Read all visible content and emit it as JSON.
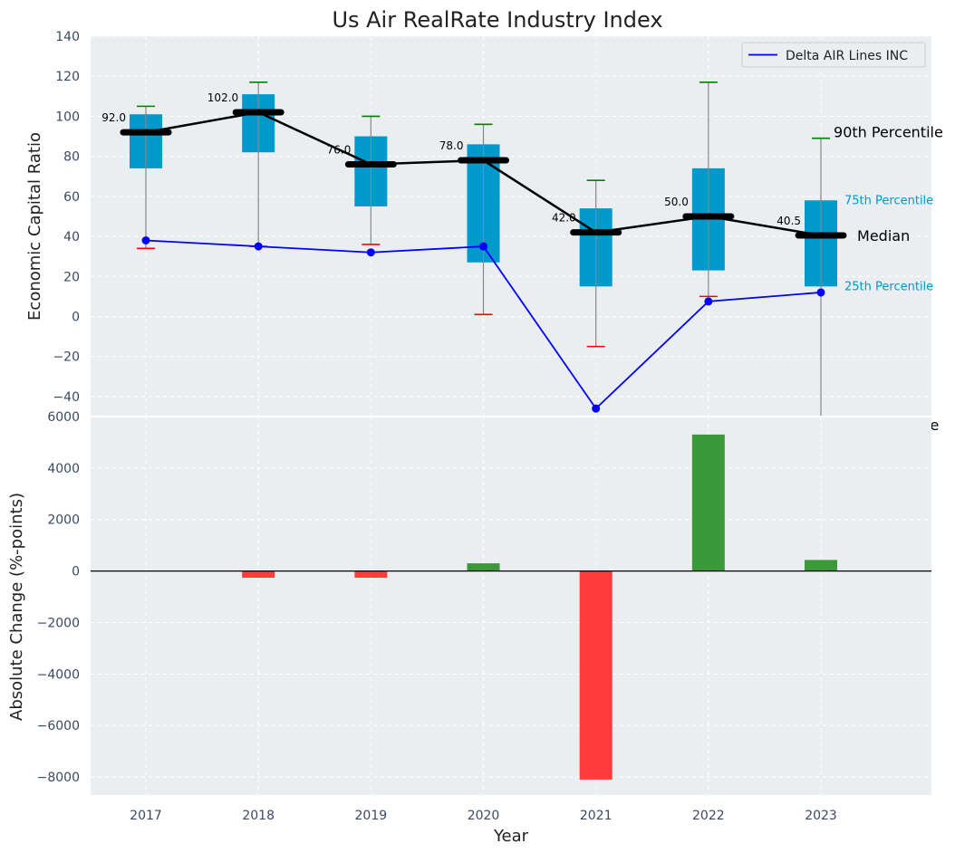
{
  "chart_data": [
    {
      "type": "box",
      "title": "Us Air RealRate Industry Index",
      "xlabel": "",
      "ylabel": "Economic Capital Ratio",
      "ylim": [
        -50,
        140
      ],
      "yticks": [
        -40,
        -20,
        0,
        20,
        40,
        60,
        80,
        100,
        120,
        140
      ],
      "yticklabels": [
        "−40",
        "−20",
        "0",
        "20",
        "40",
        "60",
        "80",
        "100",
        "120",
        "140"
      ],
      "categories": [
        "2017",
        "2018",
        "2019",
        "2020",
        "2021",
        "2022",
        "2023"
      ],
      "boxes": [
        {
          "year": "2017",
          "p10": 34,
          "p25": 74,
          "median": 92,
          "p75": 101,
          "p90": 105,
          "median_label": "92.0"
        },
        {
          "year": "2018",
          "p10": 35,
          "p25": 82,
          "median": 102,
          "p75": 111,
          "p90": 117,
          "median_label": "102.0"
        },
        {
          "year": "2019",
          "p10": 36,
          "p25": 55,
          "median": 76,
          "p75": 90,
          "p90": 100,
          "median_label": "76.0"
        },
        {
          "year": "2020",
          "p10": 1,
          "p25": 27,
          "median": 78,
          "p75": 86,
          "p90": 96,
          "median_label": "78.0"
        },
        {
          "year": "2021",
          "p10": -15,
          "p25": 15,
          "median": 42,
          "p75": 54,
          "p90": 68,
          "median_label": "42.0"
        },
        {
          "year": "2022",
          "p10": 10,
          "p25": 23,
          "median": 50,
          "p75": 74,
          "p90": 117,
          "median_label": "50.0"
        },
        {
          "year": "2023",
          "p10": -50,
          "p25": 15,
          "median": 40.5,
          "p75": 58,
          "p90": 89,
          "median_label": "40.5"
        }
      ],
      "series": [
        {
          "name": "Delta AIR Lines INC",
          "color": "#0000ff",
          "values": [
            38,
            35,
            32,
            35,
            -46,
            7.5,
            12
          ]
        }
      ],
      "annotations": {
        "p90": "90th Percentile",
        "p75": "75th Percentile",
        "median": "Median",
        "p25": "25th Percentile",
        "p10_clipped": "le"
      },
      "legend": "top-right",
      "grid": true
    },
    {
      "type": "bar",
      "xlabel": "Year",
      "ylabel": "Absolute Change (%-points)",
      "ylim": [
        -8700,
        6000
      ],
      "yticks": [
        -8000,
        -6000,
        -4000,
        -2000,
        0,
        2000,
        4000,
        6000
      ],
      "yticklabels": [
        "−8000",
        "−6000",
        "−4000",
        "−2000",
        "0",
        "2000",
        "4000",
        "6000"
      ],
      "categories": [
        "2017",
        "2018",
        "2019",
        "2020",
        "2021",
        "2022",
        "2023"
      ],
      "values": [
        null,
        -260,
        -260,
        300,
        -8100,
        5300,
        430
      ],
      "positive_color": "#3a9a3a",
      "negative_color": "#ff3b3b",
      "grid": true
    }
  ],
  "colors": {
    "box_fill": "#0099cc",
    "median_line": "#000000",
    "whisker": "#888888",
    "cap_top": "#008000",
    "cap_bottom": "#ff0000",
    "plot_bg": "#eaeef0",
    "grid": "#ffffff"
  }
}
